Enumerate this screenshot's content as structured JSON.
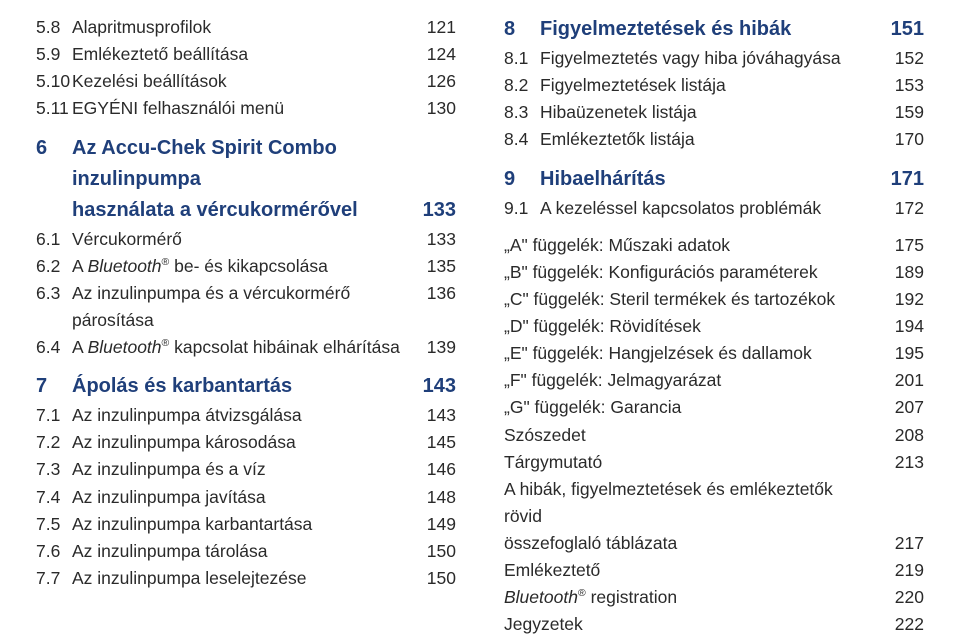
{
  "font": {
    "body_size": 17.5,
    "chapter_size": 20,
    "color_body": "#2a2a2a",
    "color_chapter": "#1f3f7a"
  },
  "left": [
    {
      "num": "5.8",
      "title": "Alapritmusprofilok",
      "page": "121"
    },
    {
      "num": "5.9",
      "title": "Emlékeztető beállítása",
      "page": "124"
    },
    {
      "num": "5.10",
      "title": "Kezelési beállítások",
      "page": "126"
    },
    {
      "num": "5.11",
      "title": "EGYÉNI felhasználói menü",
      "page": "130"
    },
    {
      "chapter": true,
      "gap": true,
      "num": "6",
      "title": "Az Accu-Chek Spirit Combo inzulinpumpa",
      "page": ""
    },
    {
      "chapter": true,
      "indent": true,
      "num": "",
      "title": "használata a vércukormérővel",
      "page": "133"
    },
    {
      "num": "6.1",
      "title": "Vércukormérő",
      "page": "133"
    },
    {
      "num": "6.2",
      "title_html": "A <i>Bluetooth</i><sup>®</sup> be- és kikapcsolása",
      "page": "135"
    },
    {
      "num": "6.3",
      "title": "Az inzulinpumpa és a vércukormérő párosítása",
      "page": "136"
    },
    {
      "num": "6.4",
      "title_html": "A <i>Bluetooth</i><sup>®</sup> kapcsolat hibáinak elhárítása",
      "page": "139"
    },
    {
      "chapter": true,
      "gap": true,
      "num": "7",
      "title": "Ápolás és karbantartás",
      "page": "143"
    },
    {
      "num": "7.1",
      "title": "Az inzulinpumpa átvizsgálása",
      "page": "143"
    },
    {
      "num": "7.2",
      "title": "Az inzulinpumpa károsodása",
      "page": "145"
    },
    {
      "num": "7.3",
      "title": "Az inzulinpumpa és a víz",
      "page": "146"
    },
    {
      "num": "7.4",
      "title": "Az inzulinpumpa javítása",
      "page": "148"
    },
    {
      "num": "7.5",
      "title": "Az inzulinpumpa karbantartása",
      "page": "149"
    },
    {
      "num": "7.6",
      "title": "Az inzulinpumpa tárolása",
      "page": "150"
    },
    {
      "num": "7.7",
      "title": "Az inzulinpumpa leselejtezése",
      "page": "150"
    }
  ],
  "right": [
    {
      "chapter": true,
      "num": "8",
      "title": "Figyelmeztetések és hibák",
      "page": "151"
    },
    {
      "num": "8.1",
      "title": "Figyelmeztetés vagy hiba jóváhagyása",
      "page": "152"
    },
    {
      "num": "8.2",
      "title": "Figyelmeztetések listája",
      "page": "153"
    },
    {
      "num": "8.3",
      "title": "Hibaüzenetek listája",
      "page": "159"
    },
    {
      "num": "8.4",
      "title": "Emlékeztetők listája",
      "page": "170"
    },
    {
      "chapter": true,
      "gap": true,
      "num": "9",
      "title": "Hibaelhárítás",
      "page": "171"
    },
    {
      "num": "9.1",
      "title": "A kezeléssel kapcsolatos problémák",
      "page": "172"
    },
    {
      "gap": true,
      "num": "",
      "title": "„A\" függelék: Műszaki adatok",
      "page": "175"
    },
    {
      "num": "",
      "title": "„B\" függelék: Konfigurációs paraméterek",
      "page": "189"
    },
    {
      "num": "",
      "title": "„C\" függelék: Steril termékek és tartozékok",
      "page": "192"
    },
    {
      "num": "",
      "title": "„D\" függelék: Rövidítések",
      "page": "194"
    },
    {
      "num": "",
      "title": "„E\" függelék: Hangjelzések és dallamok",
      "page": "195"
    },
    {
      "num": "",
      "title": "„F\" függelék: Jelmagyarázat",
      "page": "201"
    },
    {
      "num": "",
      "title": "„G\" függelék: Garancia",
      "page": "207"
    },
    {
      "num": "",
      "title": "Szószedet",
      "page": "208"
    },
    {
      "num": "",
      "title": "Tárgymutató",
      "page": "213"
    },
    {
      "num": "",
      "title": "A hibák, figyelmeztetések és emlékeztetők rövid",
      "page": ""
    },
    {
      "num": "",
      "title": "összefoglaló táblázata",
      "page": "217"
    },
    {
      "num": "",
      "title": "Emlékeztető",
      "page": "219"
    },
    {
      "num": "",
      "title_html": "<i>Bluetooth</i><sup>®</sup> registration",
      "page": "220"
    },
    {
      "num": "",
      "title": "Jegyzetek",
      "page": "222"
    }
  ]
}
